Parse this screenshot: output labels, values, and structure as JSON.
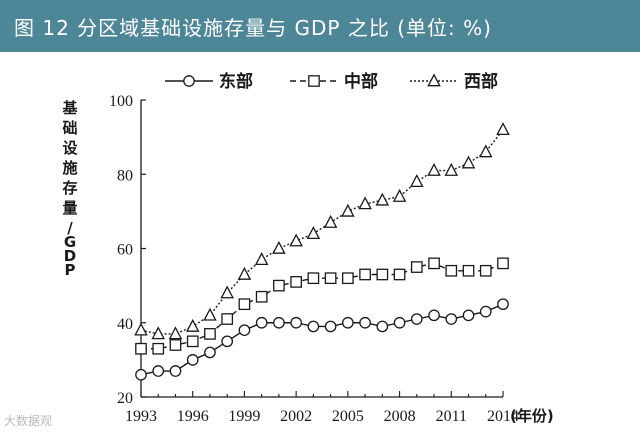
{
  "title": "图 12  分区域基础设施存量与 GDP 之比 (单位: %)",
  "watermark": "大数据观",
  "colors": {
    "title_bg": "#4d8696",
    "title_fg": "#ffffff",
    "ink": "#1a1a1a"
  },
  "chart_data": {
    "type": "line",
    "title": "",
    "ylabel": "基础设施存量/GDP",
    "xlabel": "(年份)",
    "x": [
      1993,
      1994,
      1995,
      1996,
      1997,
      1998,
      1999,
      2000,
      2001,
      2002,
      2003,
      2004,
      2005,
      2006,
      2007,
      2008,
      2009,
      2010,
      2011,
      2012,
      2013,
      2014
    ],
    "xticks": [
      "1993",
      "1996",
      "1999",
      "2002",
      "2005",
      "2008",
      "2011",
      "2014"
    ],
    "ylim": [
      20,
      100
    ],
    "yticks": [
      "20",
      "40",
      "60",
      "80",
      "100"
    ],
    "grid": false,
    "legend_position": "top",
    "series": [
      {
        "name": "东部",
        "marker": "circle",
        "dash": "solid",
        "values": [
          26,
          27,
          27,
          30,
          32,
          35,
          38,
          40,
          40,
          40,
          39,
          39,
          40,
          40,
          39,
          40,
          41,
          42,
          41,
          42,
          43,
          45
        ]
      },
      {
        "name": "中部",
        "marker": "square",
        "dash": "dashed",
        "values": [
          33,
          33,
          34,
          35,
          37,
          41,
          45,
          47,
          50,
          51,
          52,
          52,
          52,
          53,
          53,
          53,
          55,
          56,
          54,
          54,
          54,
          56
        ]
      },
      {
        "name": "西部",
        "marker": "triangle",
        "dash": "dotted",
        "values": [
          38,
          37,
          37,
          39,
          42,
          48,
          53,
          57,
          60,
          62,
          64,
          67,
          70,
          72,
          73,
          74,
          78,
          81,
          81,
          83,
          86,
          92
        ]
      }
    ]
  }
}
